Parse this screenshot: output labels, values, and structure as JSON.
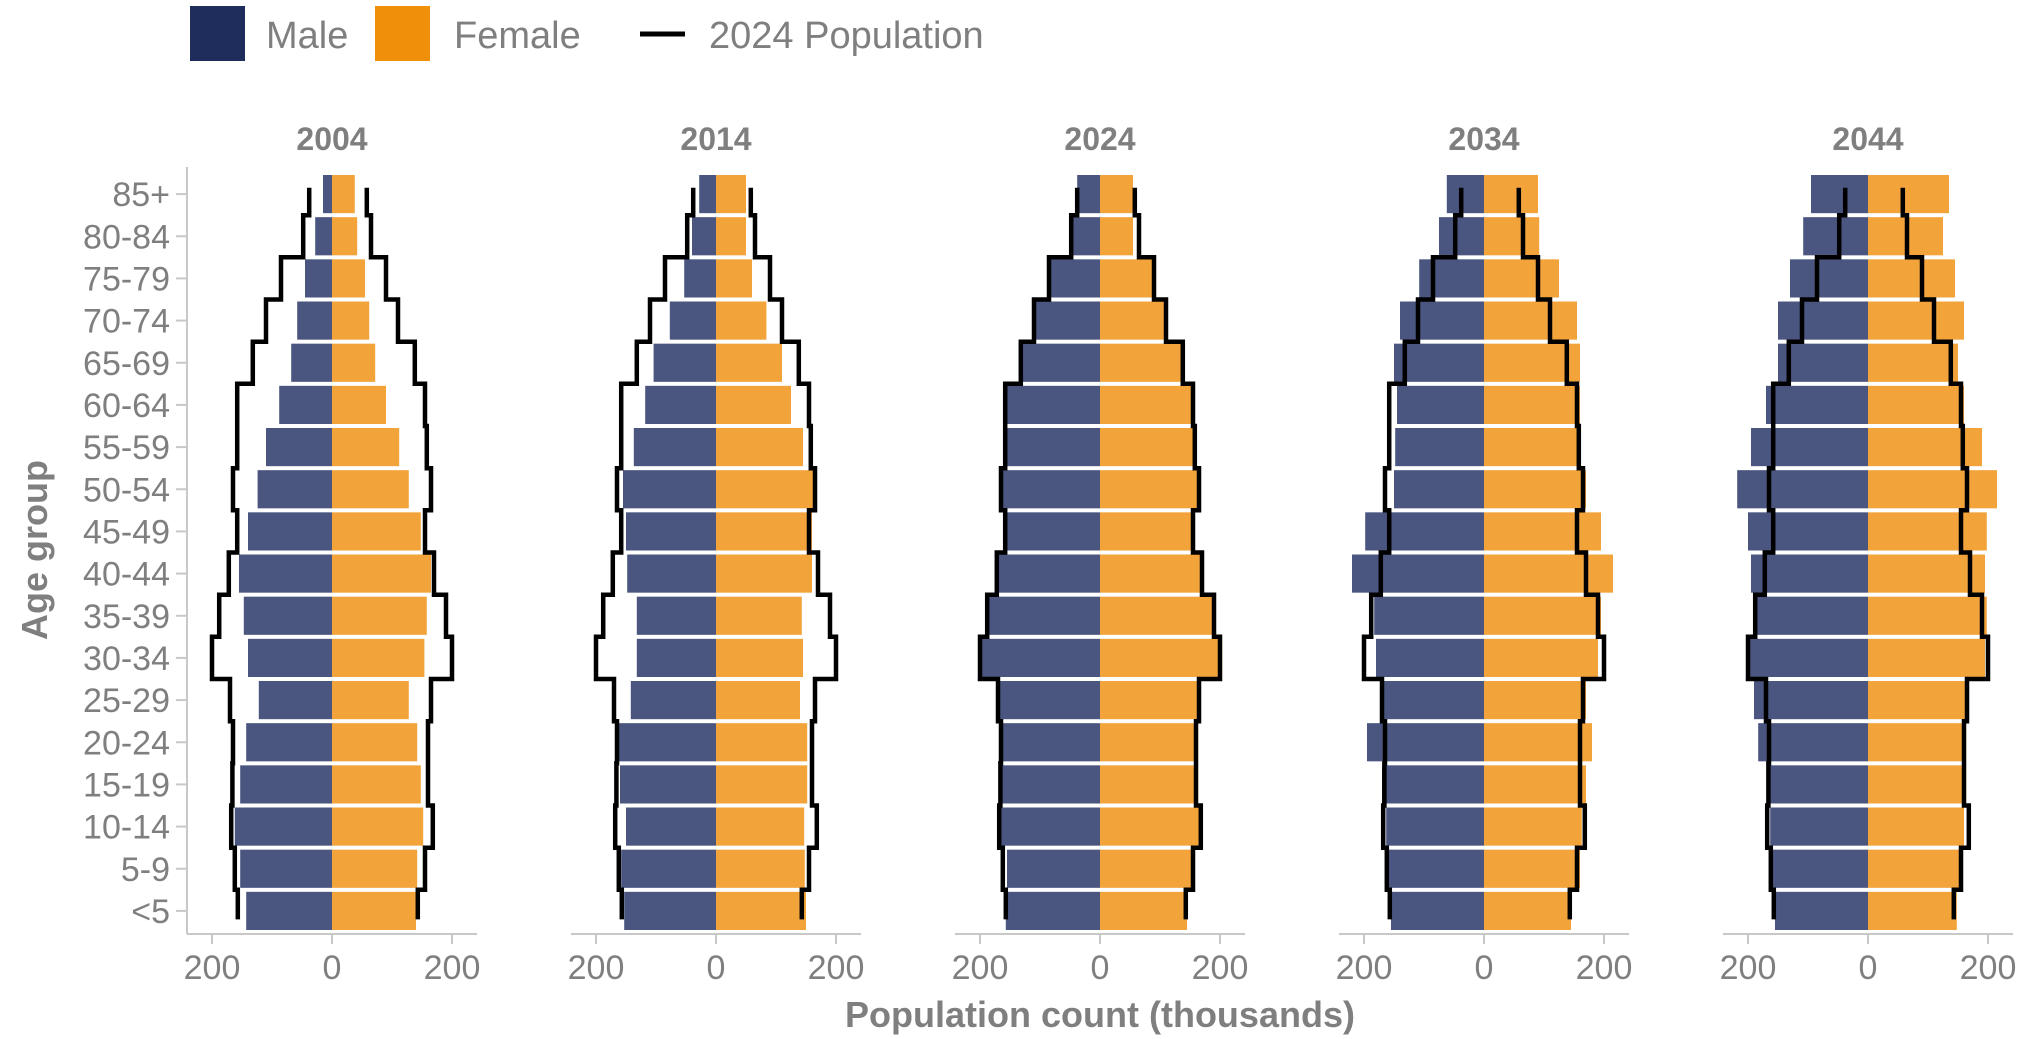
{
  "chart_data": {
    "type": "population-pyramid",
    "xlabel": "Population count (thousands)",
    "ylabel": "Age group",
    "xlim": [
      -230,
      230
    ],
    "x_ticks": [
      -200,
      0,
      200
    ],
    "x_tick_labels": [
      "200",
      "0",
      "200"
    ],
    "grid": false,
    "legend_position": "top-left",
    "legend": [
      {
        "label": "Male",
        "kind": "box",
        "color": "#1f2d5c"
      },
      {
        "label": "Female",
        "kind": "box",
        "color": "#f0900a"
      },
      {
        "label": "2024 Population",
        "kind": "line",
        "color": "#000000"
      }
    ],
    "age_groups": [
      "<5",
      "5-9",
      "10-14",
      "15-19",
      "20-24",
      "25-29",
      "30-34",
      "35-39",
      "40-44",
      "45-49",
      "50-54",
      "55-59",
      "60-64",
      "65-69",
      "70-74",
      "75-79",
      "80-84",
      "85+"
    ],
    "reference_line_label": "2024 Population",
    "reference_line": {
      "male": [
        157,
        162,
        168,
        166,
        165,
        170,
        200,
        188,
        172,
        158,
        165,
        158,
        158,
        132,
        110,
        85,
        48,
        38
      ],
      "female": [
        143,
        155,
        168,
        160,
        160,
        165,
        200,
        190,
        170,
        155,
        165,
        158,
        155,
        138,
        110,
        90,
        65,
        58
      ]
    },
    "panels": [
      {
        "year": "2004",
        "male": [
          143,
          153,
          162,
          153,
          143,
          122,
          140,
          147,
          155,
          140,
          124,
          110,
          88,
          68,
          58,
          45,
          28,
          15
        ],
        "female": [
          140,
          142,
          152,
          148,
          142,
          128,
          154,
          158,
          165,
          148,
          128,
          112,
          90,
          72,
          62,
          55,
          42,
          38
        ]
      },
      {
        "year": "2014",
        "male": [
          153,
          158,
          150,
          160,
          167,
          142,
          132,
          132,
          148,
          150,
          155,
          137,
          118,
          104,
          77,
          53,
          40,
          28
        ],
        "female": [
          150,
          148,
          147,
          152,
          152,
          140,
          145,
          143,
          160,
          160,
          168,
          145,
          125,
          110,
          84,
          60,
          50,
          50
        ]
      },
      {
        "year": "2024",
        "male": [
          157,
          155,
          165,
          163,
          163,
          168,
          200,
          188,
          172,
          158,
          163,
          155,
          155,
          132,
          110,
          85,
          48,
          38
        ],
        "female": [
          145,
          153,
          165,
          158,
          158,
          163,
          200,
          190,
          168,
          155,
          163,
          155,
          153,
          138,
          110,
          88,
          55,
          55
        ]
      },
      {
        "year": "2034",
        "male": [
          155,
          160,
          163,
          170,
          195,
          170,
          180,
          183,
          220,
          198,
          150,
          148,
          145,
          150,
          140,
          108,
          75,
          62
        ],
        "female": [
          145,
          160,
          163,
          170,
          180,
          170,
          190,
          195,
          215,
          195,
          170,
          160,
          160,
          160,
          155,
          125,
          92,
          90
        ]
      },
      {
        "year": "2044",
        "male": [
          155,
          160,
          163,
          165,
          183,
          190,
          200,
          190,
          195,
          200,
          218,
          195,
          170,
          150,
          150,
          130,
          108,
          95
        ],
        "female": [
          148,
          155,
          160,
          160,
          160,
          165,
          195,
          198,
          195,
          198,
          215,
          190,
          160,
          150,
          160,
          145,
          125,
          135
        ]
      }
    ]
  }
}
